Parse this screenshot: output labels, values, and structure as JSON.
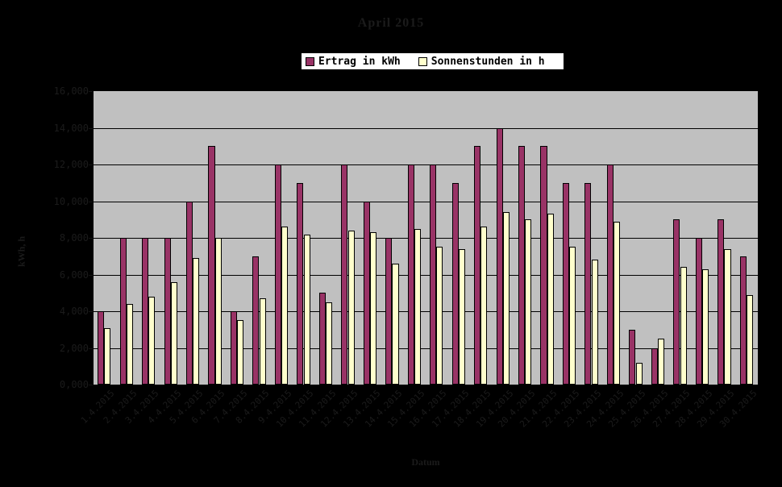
{
  "title": "April 2015",
  "colors": {
    "background": "#000000",
    "plot_background": "#C0C0C0",
    "gridline": "#000000",
    "outside_text": "#1B1B1B",
    "legend_background": "#FFFFFF",
    "series_ertrag": "#993366",
    "series_sonnenstunden": "#FFFFCC"
  },
  "chart_data": {
    "type": "bar",
    "title": "April 2015",
    "xlabel": "Datum",
    "ylabel": "kWh, h",
    "ylim": [
      0,
      16000
    ],
    "y_step": 2000,
    "y_tick_labels": [
      "16,000",
      "14,000",
      "12,000",
      "10,000",
      "8,000",
      "6,000",
      "4,000",
      "2,000",
      "0,000"
    ],
    "grid": true,
    "legend_position": "top",
    "plot_background": "#C0C0C0",
    "categories": [
      "1.4.2015",
      "2.4.2015",
      "3.4.2015",
      "4.4.2015",
      "5.4.2015",
      "6.4.2015",
      "7.4.2015",
      "8.4.2015",
      "9.4.2015",
      "10.4.2015",
      "11.4.2015",
      "12.4.2015",
      "13.4.2015",
      "14.4.2015",
      "15.4.2015",
      "16.4.2015",
      "17.4.2015",
      "18.4.2015",
      "19.4.2015",
      "20.4.2015",
      "21.4.2015",
      "22.4.2015",
      "23.4.2015",
      "24.4.2015",
      "25.4.2015",
      "26.4.2015",
      "27.4.2015",
      "28.4.2015",
      "29.4.2015",
      "30.4.2015"
    ],
    "series": [
      {
        "name": "Ertrag in kWh",
        "color": "#993366",
        "values": [
          4000,
          8000,
          8000,
          8000,
          10000,
          13000,
          4000,
          7000,
          12000,
          11000,
          5000,
          12000,
          10000,
          8000,
          12000,
          12000,
          11000,
          13000,
          14000,
          13000,
          13000,
          11000,
          11000,
          12000,
          3000,
          2000,
          9000,
          8000,
          9000,
          7000
        ]
      },
      {
        "name": "Sonnenstunden in h",
        "color": "#FFFFCC",
        "values": [
          3100,
          4400,
          4800,
          5600,
          6900,
          8000,
          3500,
          4700,
          8600,
          8200,
          4500,
          8400,
          8300,
          6600,
          8500,
          7500,
          7400,
          8600,
          9400,
          9000,
          9300,
          7500,
          6800,
          8900,
          1200,
          2500,
          6400,
          6300,
          7400,
          4900
        ]
      }
    ]
  }
}
